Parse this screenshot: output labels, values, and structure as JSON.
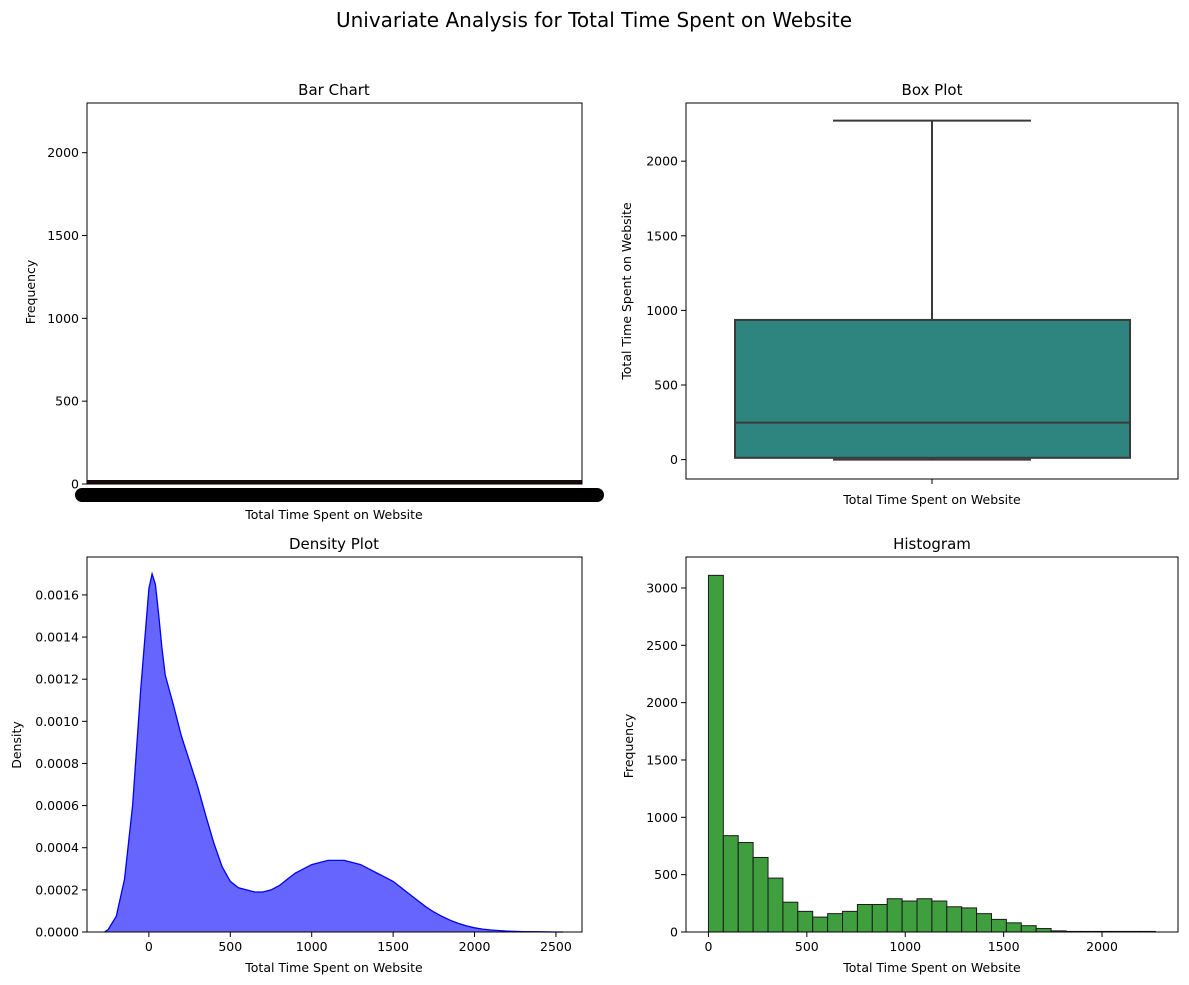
{
  "figure": {
    "title": "Univariate Analysis for Total Time Spent on Website"
  },
  "chart_data": [
    {
      "type": "bar",
      "title": "Bar Chart",
      "xlabel": "Total Time Spent on Website",
      "ylabel": "Frequency",
      "ylim": [
        0,
        2300
      ],
      "yticks": [
        0,
        500,
        1000,
        1500,
        2000
      ],
      "note": "x-axis has a very large number of overlapping category tick labels (unique time values); bars are all near zero height",
      "values_range": [
        0,
        15
      ]
    },
    {
      "type": "box",
      "title": "Box Plot",
      "xlabel": "Total Time Spent on Website",
      "ylabel": "Total Time Spent on Website",
      "ylim": [
        -130,
        2390
      ],
      "yticks": [
        0,
        500,
        1000,
        1500,
        2000
      ],
      "stats": {
        "min": 0,
        "q1": 12,
        "median": 248,
        "q3": 936,
        "max": 2272
      },
      "color": "#2e8580"
    },
    {
      "type": "area",
      "title": "Density Plot",
      "xlabel": "Total Time Spent on Website",
      "ylabel": "Density",
      "xlim": [
        -380,
        2660
      ],
      "ylim": [
        0,
        0.00178
      ],
      "xticks": [
        0,
        500,
        1000,
        1500,
        2000,
        2500
      ],
      "yticks": [
        0,
        0.0002,
        0.0004,
        0.0006,
        0.0008,
        0.001,
        0.0012,
        0.0014,
        0.0016
      ],
      "ytick_labels": [
        "0.0000",
        "0.0002",
        "0.0004",
        "0.0006",
        "0.0008",
        "0.0010",
        "0.0012",
        "0.0014",
        "0.0016"
      ],
      "x": [
        -272,
        -250,
        -200,
        -150,
        -100,
        -50,
        0,
        20,
        40,
        60,
        80,
        100,
        150,
        200,
        250,
        300,
        350,
        400,
        450,
        500,
        550,
        600,
        650,
        700,
        750,
        800,
        850,
        900,
        950,
        1000,
        1050,
        1100,
        1150,
        1200,
        1250,
        1300,
        1350,
        1400,
        1450,
        1500,
        1550,
        1600,
        1650,
        1700,
        1750,
        1800,
        1850,
        1900,
        1950,
        2000,
        2050,
        2100,
        2200,
        2300,
        2400,
        2500,
        2544
      ],
      "y": [
        0,
        1.2e-05,
        7.5e-05,
        0.00025,
        0.0006,
        0.00115,
        0.00163,
        0.0017,
        0.00165,
        0.00151,
        0.00135,
        0.00122,
        0.00108,
        0.00093,
        0.00081,
        0.00069,
        0.00055,
        0.00042,
        0.00031,
        0.00024,
        0.00021,
        0.0002,
        0.00019,
        0.00019,
        0.0002,
        0.00022,
        0.00025,
        0.00028,
        0.0003,
        0.00032,
        0.00033,
        0.00034,
        0.00034,
        0.00034,
        0.00033,
        0.00032,
        0.0003,
        0.00028,
        0.00026,
        0.00024,
        0.00021,
        0.00018,
        0.00015,
        0.00012,
        9.5e-05,
        7.4e-05,
        5.6e-05,
        4.1e-05,
        2.9e-05,
        2e-05,
        1.4e-05,
        9.5e-06,
        4.5e-06,
        2e-06,
        8e-07,
        2e-07,
        0
      ],
      "fill_color": "#6666ff",
      "line_color": "#0000ee"
    },
    {
      "type": "bar",
      "subtype": "histogram",
      "title": "Histogram",
      "xlabel": "Total Time Spent on Website",
      "ylabel": "Frequency",
      "xlim": [
        -114,
        2386
      ],
      "ylim": [
        0,
        3270
      ],
      "xticks": [
        0,
        500,
        1000,
        1500,
        2000
      ],
      "yticks": [
        0,
        500,
        1000,
        1500,
        2000,
        2500,
        3000
      ],
      "bin_width": 75.7,
      "bins_start": [
        0,
        75.7,
        151.4,
        227.1,
        302.8,
        378.5,
        454.2,
        529.9,
        605.6,
        681.3,
        757,
        832.7,
        908.4,
        984.1,
        1059.8,
        1135.5,
        1211.2,
        1286.9,
        1362.6,
        1438.3,
        1514,
        1589.7,
        1665.4,
        1741.1,
        1816.8,
        1892.5,
        1968.2,
        2043.9,
        2119.6,
        2195.3
      ],
      "values": [
        3110,
        840,
        780,
        650,
        470,
        260,
        180,
        130,
        160,
        180,
        240,
        240,
        290,
        270,
        290,
        270,
        220,
        210,
        160,
        110,
        80,
        55,
        30,
        10,
        5,
        5,
        5,
        5,
        5,
        5
      ],
      "color": "#3f9f3f"
    }
  ]
}
